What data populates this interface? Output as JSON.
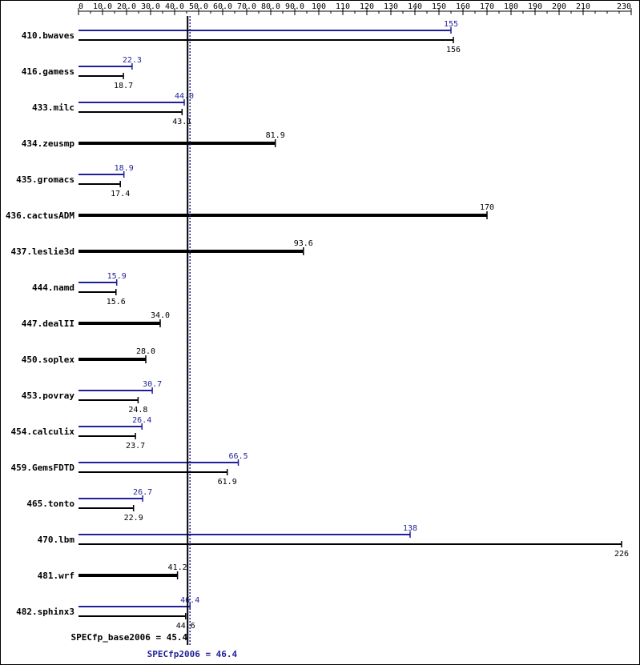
{
  "chart_data": {
    "type": "bar",
    "orientation": "horizontal",
    "xlim": [
      0,
      230
    ],
    "ticks": [
      {
        "value": 0,
        "label": "0"
      },
      {
        "value": 10,
        "label": "10.0"
      },
      {
        "value": 20,
        "label": "20.0"
      },
      {
        "value": 30,
        "label": "30.0"
      },
      {
        "value": 40,
        "label": "40.0"
      },
      {
        "value": 50,
        "label": "50.0"
      },
      {
        "value": 60,
        "label": "60.0"
      },
      {
        "value": 70,
        "label": "70.0"
      },
      {
        "value": 80,
        "label": "80.0"
      },
      {
        "value": 90,
        "label": "90.0"
      },
      {
        "value": 100,
        "label": "100"
      },
      {
        "value": 110,
        "label": "110"
      },
      {
        "value": 120,
        "label": "120"
      },
      {
        "value": 130,
        "label": "130"
      },
      {
        "value": 140,
        "label": "140"
      },
      {
        "value": 150,
        "label": "150"
      },
      {
        "value": 160,
        "label": "160"
      },
      {
        "value": 170,
        "label": "170"
      },
      {
        "value": 180,
        "label": "180"
      },
      {
        "value": 190,
        "label": "190"
      },
      {
        "value": 200,
        "label": "200"
      },
      {
        "value": 210,
        "label": "210"
      },
      {
        "value": 230,
        "label": "230"
      }
    ],
    "benchmarks": [
      {
        "name": "410.bwaves",
        "peak": 155,
        "peak_label": "155",
        "base": 156,
        "base_label": "156"
      },
      {
        "name": "416.gamess",
        "peak": 22.3,
        "peak_label": "22.3",
        "base": 18.7,
        "base_label": "18.7"
      },
      {
        "name": "433.milc",
        "peak": 44.0,
        "peak_label": "44.0",
        "base": 43.1,
        "base_label": "43.1"
      },
      {
        "name": "434.zeusmp",
        "peak": null,
        "peak_label": "",
        "base": 81.9,
        "base_label": "81.9"
      },
      {
        "name": "435.gromacs",
        "peak": 18.9,
        "peak_label": "18.9",
        "base": 17.4,
        "base_label": "17.4"
      },
      {
        "name": "436.cactusADM",
        "peak": null,
        "peak_label": "",
        "base": 170,
        "base_label": "170"
      },
      {
        "name": "437.leslie3d",
        "peak": null,
        "peak_label": "",
        "base": 93.6,
        "base_label": "93.6"
      },
      {
        "name": "444.namd",
        "peak": 15.9,
        "peak_label": "15.9",
        "base": 15.6,
        "base_label": "15.6"
      },
      {
        "name": "447.dealII",
        "peak": null,
        "peak_label": "",
        "base": 34.0,
        "base_label": "34.0"
      },
      {
        "name": "450.soplex",
        "peak": null,
        "peak_label": "",
        "base": 28.0,
        "base_label": "28.0"
      },
      {
        "name": "453.povray",
        "peak": 30.7,
        "peak_label": "30.7",
        "base": 24.8,
        "base_label": "24.8"
      },
      {
        "name": "454.calculix",
        "peak": 26.4,
        "peak_label": "26.4",
        "base": 23.7,
        "base_label": "23.7"
      },
      {
        "name": "459.GemsFDTD",
        "peak": 66.5,
        "peak_label": "66.5",
        "base": 61.9,
        "base_label": "61.9"
      },
      {
        "name": "465.tonto",
        "peak": 26.7,
        "peak_label": "26.7",
        "base": 22.9,
        "base_label": "22.9"
      },
      {
        "name": "470.lbm",
        "peak": 138,
        "peak_label": "138",
        "base": 226,
        "base_label": "226"
      },
      {
        "name": "481.wrf",
        "peak": null,
        "peak_label": "",
        "base": 41.2,
        "base_label": "41.2"
      },
      {
        "name": "482.sphinx3",
        "peak": 46.4,
        "peak_label": "46.4",
        "base": 44.6,
        "base_label": "44.6"
      }
    ],
    "reference_lines": {
      "base": {
        "value": 45.4,
        "label": "SPECfp_base2006 = 45.4"
      },
      "peak": {
        "value": 46.4,
        "label": "SPECfp2006 = 46.4"
      }
    },
    "colors": {
      "base": "#000000",
      "peak": "#1f1f99"
    }
  }
}
